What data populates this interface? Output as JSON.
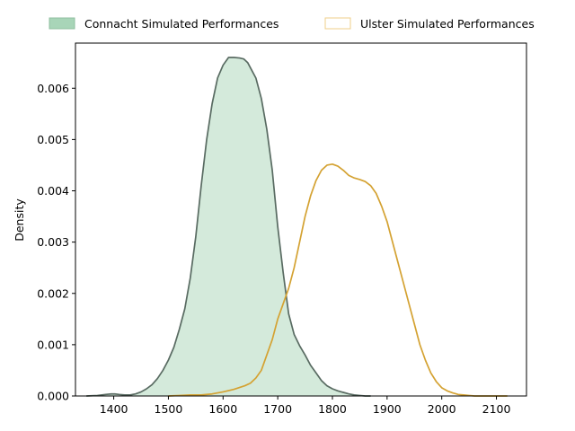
{
  "chart_data": {
    "type": "area",
    "title": "",
    "xlabel": "",
    "ylabel": "Density",
    "xlim": [
      1330,
      2155
    ],
    "ylim": [
      0,
      0.00688
    ],
    "xticks": [
      1400,
      1500,
      1600,
      1700,
      1800,
      1900,
      2000,
      2100
    ],
    "yticks": [
      0.0,
      0.001,
      0.002,
      0.003,
      0.004,
      0.005,
      0.006
    ],
    "ytick_labels": [
      "0.000",
      "0.001",
      "0.002",
      "0.003",
      "0.004",
      "0.005",
      "0.006"
    ],
    "grid": false,
    "legend_placement": "top-center-outside",
    "series": [
      {
        "name": "Connacht Simulated Performances",
        "filled": true,
        "fill_color": "#d4eadb",
        "line_color": "#596b62",
        "legend_fill": "#a8d5b8",
        "legend_edge": "#8fbf9f",
        "x": [
          1350,
          1370,
          1385,
          1395,
          1402,
          1410,
          1420,
          1430,
          1440,
          1450,
          1460,
          1470,
          1480,
          1490,
          1500,
          1510,
          1520,
          1530,
          1540,
          1550,
          1560,
          1570,
          1580,
          1590,
          1600,
          1610,
          1620,
          1630,
          1638,
          1645,
          1650,
          1660,
          1670,
          1680,
          1690,
          1700,
          1710,
          1720,
          1730,
          1740,
          1750,
          1760,
          1770,
          1780,
          1790,
          1800,
          1810,
          1820,
          1830,
          1840,
          1850,
          1860,
          1870
        ],
        "y": [
          0.0,
          1e-05,
          3e-05,
          4e-05,
          4e-05,
          3e-05,
          2e-05,
          2e-05,
          4e-05,
          8e-05,
          0.00014,
          0.00022,
          0.00034,
          0.0005,
          0.0007,
          0.00095,
          0.0013,
          0.0017,
          0.0023,
          0.0031,
          0.0041,
          0.005,
          0.0057,
          0.0062,
          0.00645,
          0.0066,
          0.0066,
          0.00659,
          0.00657,
          0.0065,
          0.0064,
          0.0062,
          0.0058,
          0.0052,
          0.0044,
          0.0033,
          0.0024,
          0.0016,
          0.0012,
          0.00098,
          0.0008,
          0.0006,
          0.00045,
          0.0003,
          0.0002,
          0.00014,
          0.0001,
          7e-05,
          4e-05,
          2e-05,
          1e-05,
          0.0,
          0.0
        ]
      },
      {
        "name": "Ulster Simulated Performances",
        "filled": false,
        "line_color": "#d4a232",
        "legend_fill": "none",
        "legend_edge": "#efcf88",
        "x": [
          1500,
          1520,
          1540,
          1560,
          1580,
          1600,
          1620,
          1640,
          1650,
          1660,
          1670,
          1680,
          1690,
          1700,
          1710,
          1720,
          1730,
          1740,
          1750,
          1760,
          1770,
          1780,
          1790,
          1800,
          1810,
          1820,
          1830,
          1840,
          1850,
          1860,
          1870,
          1880,
          1890,
          1900,
          1910,
          1920,
          1930,
          1940,
          1950,
          1960,
          1970,
          1980,
          1990,
          2000,
          2010,
          2020,
          2030,
          2040,
          2050,
          2060,
          2070,
          2080,
          2090,
          2100,
          2120
        ],
        "y": [
          0.0,
          1e-05,
          2e-05,
          2e-05,
          4e-05,
          8e-05,
          0.00013,
          0.0002,
          0.00025,
          0.00035,
          0.0005,
          0.0008,
          0.0011,
          0.0015,
          0.0018,
          0.0021,
          0.0025,
          0.003,
          0.0035,
          0.0039,
          0.0042,
          0.0044,
          0.0045,
          0.00452,
          0.00448,
          0.0044,
          0.0043,
          0.00425,
          0.00422,
          0.00418,
          0.0041,
          0.00395,
          0.0037,
          0.0034,
          0.003,
          0.0026,
          0.0022,
          0.0018,
          0.0014,
          0.001,
          0.0007,
          0.00045,
          0.00028,
          0.00016,
          0.0001,
          6e-05,
          3e-05,
          2e-05,
          1e-05,
          0.0,
          0.0,
          0.0,
          0.0,
          0.0,
          0.0
        ]
      }
    ]
  }
}
